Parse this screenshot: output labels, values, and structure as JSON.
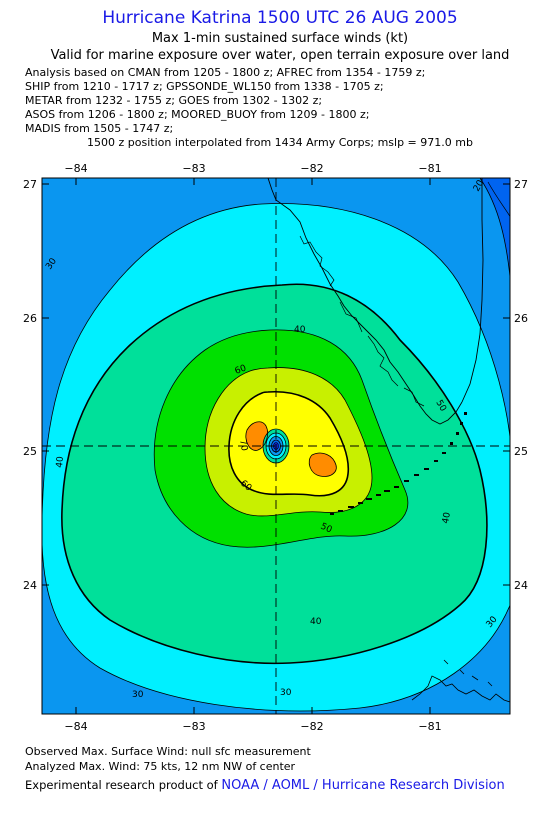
{
  "header": {
    "title": "Hurricane Katrina 1500 UTC 26 AUG 2005",
    "subtitle1": "Max 1-min sustained surface winds (kt)",
    "subtitle2": "Valid for marine exposure over water, open terrain exposure over land"
  },
  "analysis_lines": [
    "Analysis based on  CMAN from 1205 - 1800 z;  AFREC from 1354 - 1759 z;",
    "SHIP from 1210 - 1717 z;  GPSSONDE_WL150 from 1338 - 1705 z;",
    "METAR from 1232 - 1755 z;  GOES from 1302 - 1302 z;",
    "ASOS from 1206 - 1800 z;  MOORED_BUOY from 1209 - 1800 z;",
    "MADIS from 1505 - 1747 z;"
  ],
  "interpolation_note": "1500 z position interpolated from 1434 Army Corps; mslp = 971.0 mb",
  "map": {
    "lon_ticks": [
      "−84",
      "−83",
      "−82",
      "−81"
    ],
    "lat_ticks": [
      "27",
      "26",
      "25",
      "24"
    ],
    "lon_range": [
      -84.5,
      -80.5
    ],
    "lat_range": [
      23.2,
      27.0
    ],
    "storm_center": {
      "lon": -82.3,
      "lat": 25.05
    },
    "contour_labels": [
      "20",
      "30",
      "30",
      "30",
      "30",
      "40",
      "40",
      "40",
      "40",
      "50",
      "50",
      "60",
      "60",
      "70"
    ],
    "colors": {
      "lt20": "#0064f0",
      "20_30": "#0a96f0",
      "30_40": "#00f0ff",
      "40_50": "#00e09a",
      "50_60": "#00e000",
      "60_70": "#c8f000",
      "70_80": "#ffff00",
      "gt80": "#ff8c00",
      "core": "#1020c0"
    }
  },
  "footer": {
    "observed": "Observed Max. Surface Wind: null sfc measurement",
    "analyzed": "Analyzed Max. Wind: 75 kts, 12 nm NW of center",
    "product_prefix": "Experimental research product of ",
    "organization": "NOAA / AOML / Hurricane Research Division"
  }
}
